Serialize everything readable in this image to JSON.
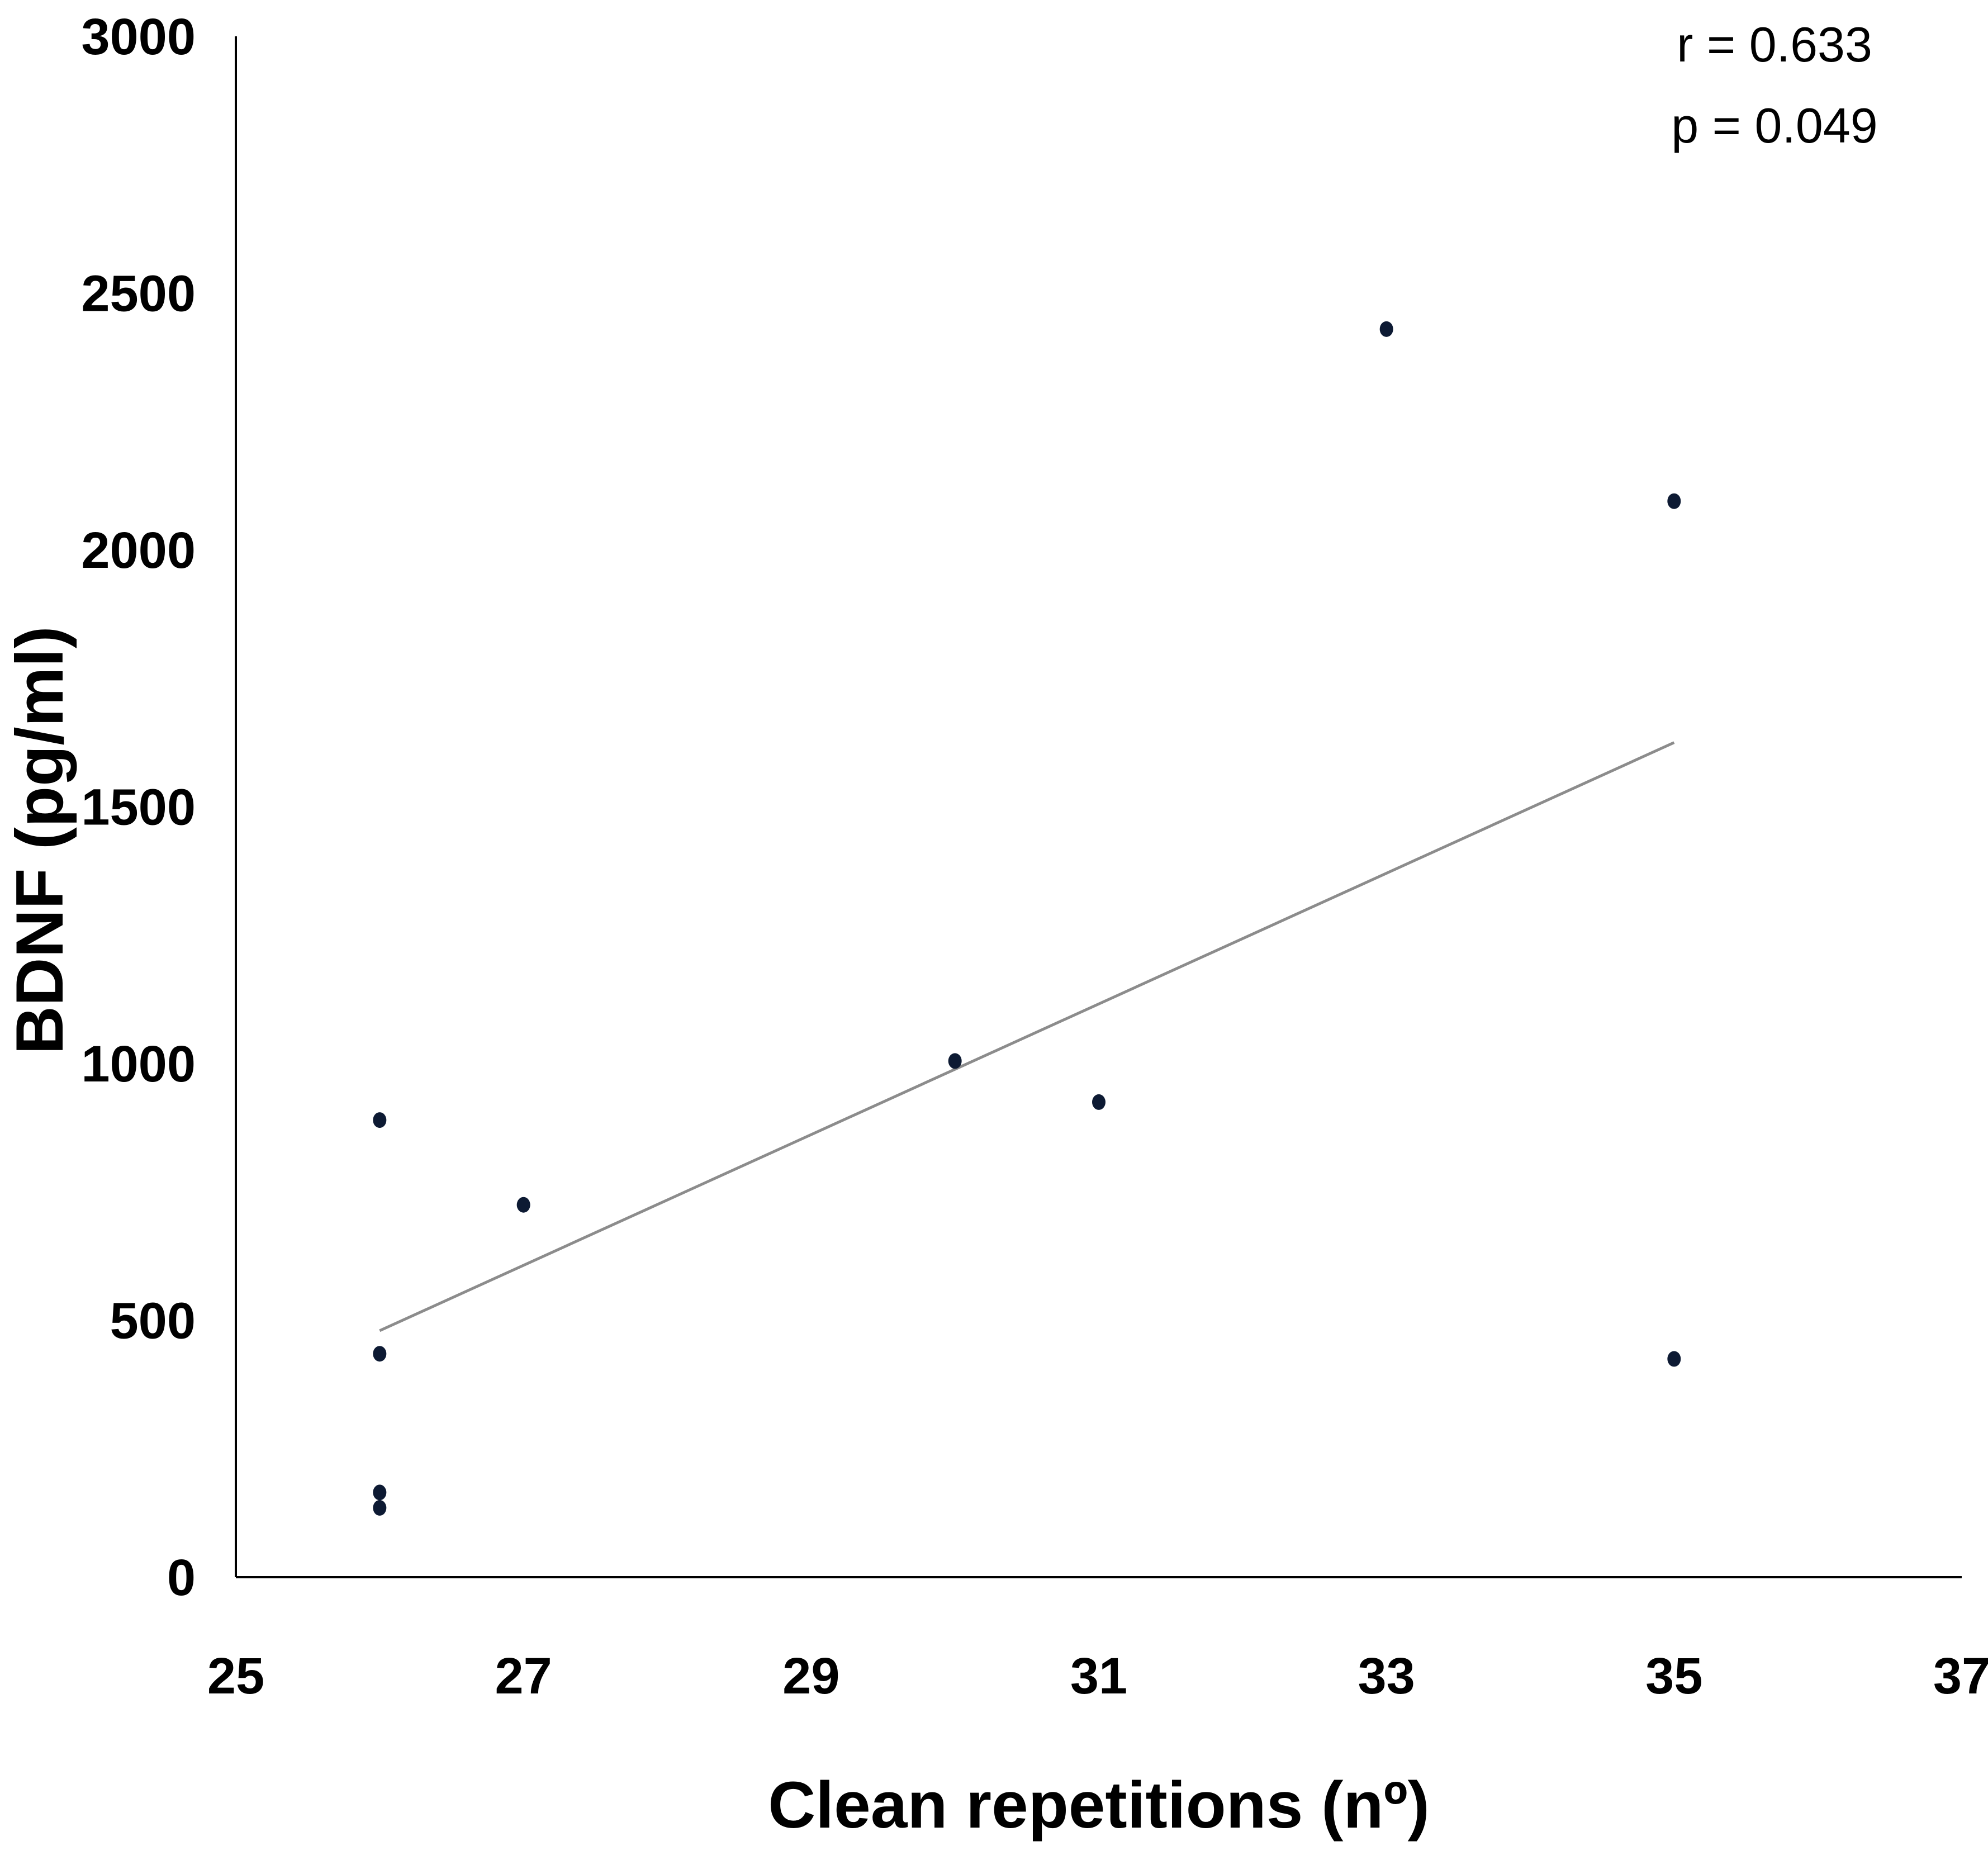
{
  "chart_data": {
    "type": "scatter",
    "title": "",
    "xlabel": "Clean repetitions (nº)",
    "ylabel": "BDNF (pg/ml)",
    "xlim": [
      25,
      37
    ],
    "ylim": [
      0,
      3000
    ],
    "x_ticks": [
      25,
      27,
      29,
      31,
      33,
      35,
      37
    ],
    "y_ticks": [
      0,
      500,
      1000,
      1500,
      2000,
      2500,
      3000
    ],
    "grid": false,
    "legend": "none",
    "series": [
      {
        "points": [
          {
            "x": 26,
            "y": 890
          },
          {
            "x": 26,
            "y": 435
          },
          {
            "x": 26,
            "y": 165
          },
          {
            "x": 26,
            "y": 135
          },
          {
            "x": 27,
            "y": 725
          },
          {
            "x": 30,
            "y": 1005
          },
          {
            "x": 31,
            "y": 925
          },
          {
            "x": 33,
            "y": 2430
          },
          {
            "x": 35,
            "y": 2095
          },
          {
            "x": 35,
            "y": 425
          }
        ],
        "color": "#0d1a33"
      }
    ],
    "trendline": {
      "type": "linear",
      "from": {
        "x": 26,
        "y": 480
      },
      "to": {
        "x": 35,
        "y": 1625
      },
      "color": "#8c8c8c"
    },
    "annotations": {
      "r": "r = 0.633",
      "p": "p = 0.049"
    }
  }
}
